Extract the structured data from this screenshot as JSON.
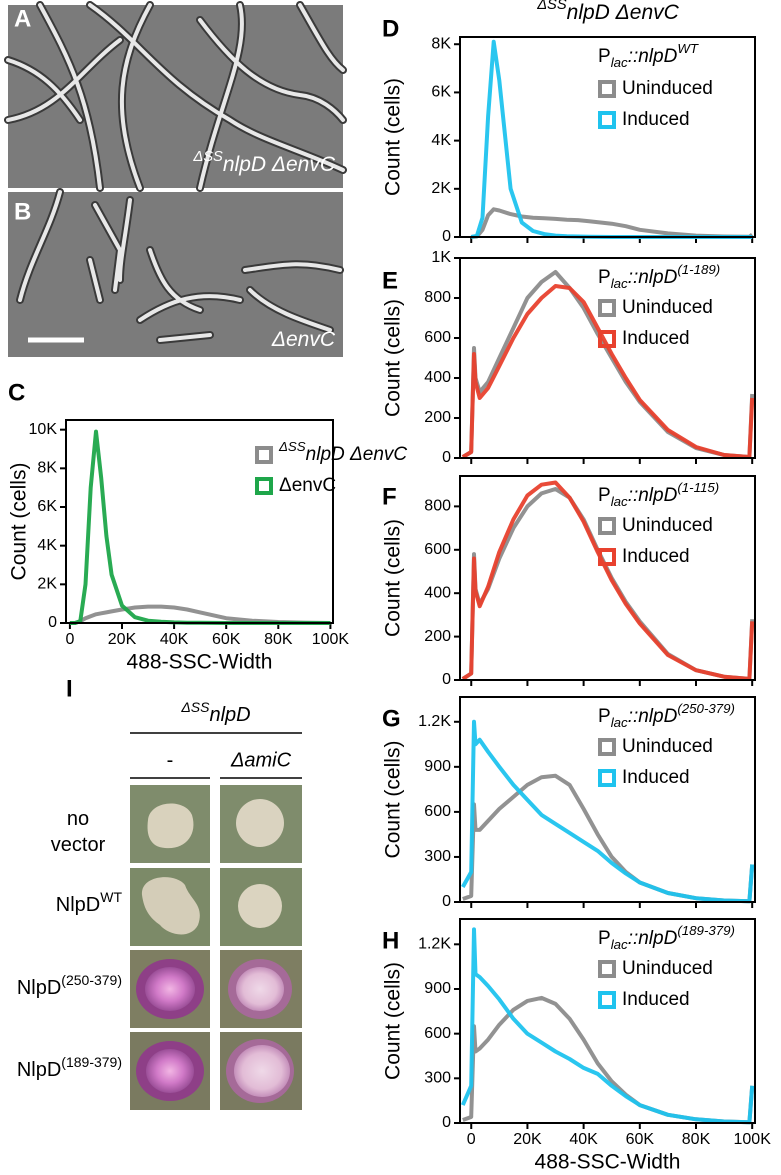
{
  "panels": [
    {
      "label": "A",
      "caption": {
        "sup": "ΔSS",
        "main": "nlpD ΔenvC"
      }
    },
    {
      "label": "B",
      "caption": "ΔenvC"
    }
  ],
  "chart_data": [
    {
      "type": "line",
      "label": "C",
      "ylabel": "Count (cells)",
      "xlabel": "488-SSC-Width",
      "show_xtick_labels": true,
      "x": [
        0,
        2000,
        4000,
        6000,
        8000,
        10000,
        12000,
        14000,
        16000,
        20000,
        25000,
        30000,
        35000,
        40000,
        45000,
        50000,
        55000,
        60000,
        70000,
        80000,
        90000,
        100000
      ],
      "series": [
        {
          "name": {
            "sup": "ΔSS",
            "main": "nlpD ΔenvC"
          },
          "color": "#8c8c8c",
          "values": [
            0,
            0,
            100,
            250,
            350,
            450,
            500,
            550,
            600,
            700,
            800,
            850,
            850,
            800,
            700,
            550,
            400,
            250,
            120,
            50,
            20,
            0
          ]
        },
        {
          "name": "ΔenvC",
          "color": "#1ea64a",
          "values": [
            0,
            0,
            100,
            2000,
            7000,
            9900,
            7500,
            4500,
            2500,
            900,
            300,
            120,
            60,
            30,
            15,
            10,
            5,
            0,
            0,
            0,
            0,
            0
          ]
        }
      ],
      "xlim": [
        -1500,
        101000
      ],
      "ylim": [
        0,
        10500
      ],
      "xticks": [
        0,
        {
          "value": 20000,
          "label": "20K"
        },
        {
          "value": 40000,
          "label": "40K"
        },
        {
          "value": 60000,
          "label": "60K"
        },
        {
          "value": 80000,
          "label": "80K"
        },
        {
          "value": 100000,
          "label": "100K"
        }
      ],
      "yticks": [
        0,
        {
          "value": 2000,
          "label": "2K"
        },
        {
          "value": 4000,
          "label": "4K"
        },
        {
          "value": 6000,
          "label": "6K"
        },
        {
          "value": 8000,
          "label": "8K"
        },
        {
          "value": 10000,
          "label": "10K"
        }
      ],
      "legend": "upper right"
    },
    {
      "type": "line",
      "label": "D",
      "title": {
        "sup": "ΔSS",
        "main": "nlpD ΔenvC"
      },
      "ylabel": "Count (cells)",
      "show_xtick_labels": false,
      "legend_title": {
        "base": "P",
        "sub": "lac",
        "main": "::nlpD",
        "sup": "WT"
      },
      "x": [
        0,
        2000,
        4000,
        6000,
        8000,
        10000,
        14000,
        18000,
        22000,
        26000,
        30000,
        34000,
        38000,
        42000,
        46000,
        50000,
        55000,
        60000,
        70000,
        80000,
        90000,
        99000,
        100000
      ],
      "series": [
        {
          "name": "Uninduced",
          "color": "#8c8c8c",
          "values": [
            0,
            20,
            300,
            900,
            1150,
            1100,
            950,
            850,
            800,
            780,
            750,
            720,
            700,
            650,
            600,
            550,
            450,
            300,
            150,
            60,
            20,
            10,
            100
          ]
        },
        {
          "name": "Induced",
          "color": "#1fc3ee",
          "values": [
            0,
            50,
            800,
            5000,
            8100,
            6500,
            2000,
            600,
            250,
            120,
            60,
            30,
            20,
            10,
            5,
            0,
            0,
            0,
            0,
            0,
            0,
            0,
            0
          ]
        }
      ],
      "xlim": [
        -4000,
        101000
      ],
      "ylim": [
        0,
        8300
      ],
      "xticks": [
        0,
        20000,
        40000,
        60000,
        80000,
        100000
      ],
      "yticks": [
        0,
        {
          "value": 2000,
          "label": "2K"
        },
        {
          "value": 4000,
          "label": "4K"
        },
        {
          "value": 6000,
          "label": "6K"
        },
        {
          "value": 8000,
          "label": "8K"
        }
      ],
      "legend": "upper right"
    },
    {
      "type": "line",
      "label": "E",
      "ylabel": "Count (cells)",
      "show_xtick_labels": false,
      "legend_title": {
        "base": "P",
        "sub": "lac",
        "main": "::nlpD",
        "sup": "(1-189)"
      },
      "x": [
        -3000,
        0,
        1000,
        1500,
        3000,
        6000,
        10000,
        15000,
        20000,
        25000,
        30000,
        35000,
        40000,
        45000,
        50000,
        55000,
        60000,
        70000,
        80000,
        90000,
        99000,
        100000
      ],
      "series": [
        {
          "name": "Uninduced",
          "color": "#8c8c8c",
          "values": [
            5,
            30,
            550,
            400,
            330,
            380,
            500,
            650,
            800,
            880,
            930,
            850,
            750,
            620,
            500,
            380,
            280,
            130,
            50,
            15,
            5,
            320
          ]
        },
        {
          "name": "Induced",
          "color": "#e8412e",
          "values": [
            5,
            30,
            520,
            380,
            300,
            350,
            460,
            600,
            720,
            800,
            860,
            850,
            780,
            650,
            520,
            400,
            290,
            140,
            55,
            15,
            5,
            300
          ]
        }
      ],
      "xlim": [
        -4000,
        101000
      ],
      "ylim": [
        0,
        1000
      ],
      "xticks": [
        0,
        20000,
        40000,
        60000,
        80000,
        100000
      ],
      "yticks": [
        0,
        200,
        400,
        600,
        800,
        {
          "value": 1000,
          "label": "1K"
        }
      ],
      "legend": "upper right"
    },
    {
      "type": "line",
      "label": "F",
      "ylabel": "Count (cells)",
      "show_xtick_labels": false,
      "legend_title": {
        "base": "P",
        "sub": "lac",
        "main": "::nlpD",
        "sup": "(1-115)"
      },
      "x": [
        -3000,
        0,
        1000,
        1500,
        3000,
        6000,
        10000,
        15000,
        20000,
        25000,
        30000,
        35000,
        40000,
        45000,
        50000,
        55000,
        60000,
        70000,
        80000,
        90000,
        99000,
        100000
      ],
      "series": [
        {
          "name": "Uninduced",
          "color": "#8c8c8c",
          "values": [
            5,
            30,
            580,
            420,
            350,
            420,
            560,
            700,
            800,
            860,
            880,
            840,
            740,
            600,
            470,
            360,
            270,
            120,
            45,
            15,
            5,
            280
          ]
        },
        {
          "name": "Induced",
          "color": "#e8412e",
          "values": [
            5,
            30,
            560,
            410,
            340,
            430,
            590,
            740,
            850,
            900,
            910,
            840,
            730,
            590,
            460,
            350,
            260,
            115,
            45,
            15,
            5,
            270
          ]
        }
      ],
      "xlim": [
        -4000,
        101000
      ],
      "ylim": [
        0,
        940
      ],
      "xticks": [
        0,
        20000,
        40000,
        60000,
        80000,
        100000
      ],
      "yticks": [
        0,
        200,
        400,
        600,
        800
      ],
      "legend": "upper right"
    },
    {
      "type": "line",
      "label": "G",
      "ylabel": "Count (cells)",
      "show_xtick_labels": false,
      "legend_title": {
        "base": "P",
        "sub": "lac",
        "main": "::nlpD",
        "sup": "(250-379)"
      },
      "x": [
        -3000,
        0,
        1000,
        1500,
        3000,
        6000,
        10000,
        15000,
        20000,
        25000,
        30000,
        35000,
        40000,
        45000,
        50000,
        55000,
        60000,
        70000,
        80000,
        90000,
        99000,
        100000
      ],
      "series": [
        {
          "name": "Uninduced",
          "color": "#8c8c8c",
          "values": [
            20,
            40,
            650,
            480,
            480,
            540,
            620,
            700,
            780,
            830,
            840,
            780,
            620,
            450,
            300,
            200,
            130,
            60,
            25,
            10,
            5,
            250
          ]
        },
        {
          "name": "Induced",
          "color": "#1fc3ee",
          "values": [
            100,
            200,
            1200,
            1050,
            1080,
            1000,
            900,
            780,
            680,
            580,
            520,
            460,
            400,
            340,
            260,
            190,
            130,
            60,
            25,
            10,
            5,
            250
          ]
        }
      ],
      "xlim": [
        -4000,
        101000
      ],
      "ylim": [
        0,
        1365
      ],
      "xticks": [
        0,
        20000,
        40000,
        60000,
        80000,
        100000
      ],
      "yticks": [
        0,
        300,
        600,
        900,
        {
          "value": 1200,
          "label": "1.2K"
        }
      ],
      "legend": "upper right"
    },
    {
      "type": "line",
      "label": "H",
      "ylabel": "Count (cells)",
      "xlabel": "488-SSC-Width",
      "show_xtick_labels": true,
      "legend_title": {
        "base": "P",
        "sub": "lac",
        "main": "::nlpD",
        "sup": "(189-379)"
      },
      "x": [
        -3000,
        0,
        1000,
        1500,
        3000,
        6000,
        10000,
        15000,
        20000,
        25000,
        30000,
        35000,
        40000,
        45000,
        50000,
        55000,
        60000,
        70000,
        80000,
        90000,
        99000,
        100000
      ],
      "series": [
        {
          "name": "Uninduced",
          "color": "#8c8c8c",
          "values": [
            20,
            40,
            650,
            480,
            500,
            560,
            660,
            760,
            820,
            840,
            800,
            700,
            560,
            400,
            280,
            190,
            120,
            55,
            25,
            10,
            5,
            250
          ]
        },
        {
          "name": "Induced",
          "color": "#1fc3ee",
          "values": [
            120,
            250,
            1300,
            1000,
            980,
            920,
            830,
            700,
            600,
            540,
            480,
            430,
            370,
            330,
            250,
            180,
            120,
            55,
            25,
            10,
            5,
            250
          ]
        }
      ],
      "xlim": [
        -4000,
        101000
      ],
      "ylim": [
        0,
        1370
      ],
      "xticks": [
        0,
        {
          "value": 20000,
          "label": "20K"
        },
        {
          "value": 40000,
          "label": "40K"
        },
        {
          "value": 60000,
          "label": "60K"
        },
        {
          "value": 80000,
          "label": "80K"
        },
        {
          "value": 100000,
          "label": "100K"
        }
      ],
      "yticks": [
        0,
        300,
        600,
        900,
        {
          "value": 1200,
          "label": "1.2K"
        }
      ],
      "legend": "upper right"
    }
  ],
  "plate_assay": {
    "label": "I",
    "title": {
      "sup": "ΔSS",
      "main": "nlpD"
    },
    "columns": [
      "-",
      "ΔamiC"
    ],
    "rows": [
      "no vector",
      {
        "main": "NlpD",
        "sup": "WT"
      },
      {
        "main": "NlpD",
        "sup": "(250-379)"
      },
      {
        "main": "NlpD",
        "sup": "(189-379)"
      }
    ]
  }
}
